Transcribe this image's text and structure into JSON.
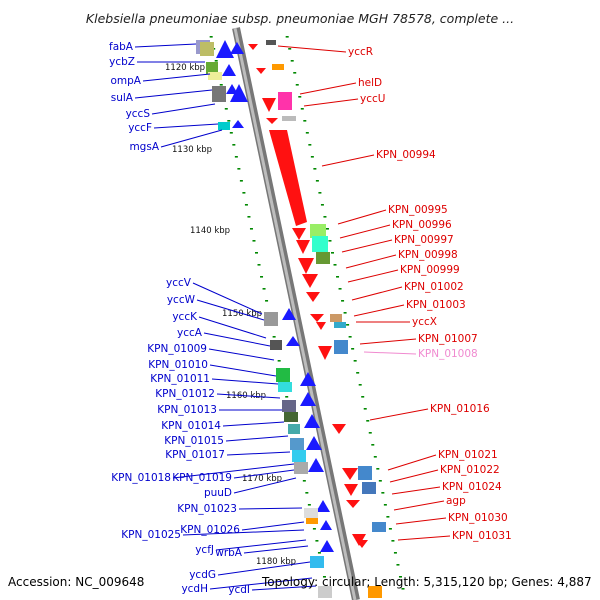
{
  "title": "Klebsiella pneumoniae subsp. pneumoniae MGH 78578, complete ...",
  "footer": {
    "accession": "Accession: NC_009648",
    "summary": "Topology: circular; Length: 5,315,120 bp; Genes: 4,887"
  },
  "colors": {
    "backbone": "#9a9a9a",
    "forward_label": "#0000cc",
    "reverse_label": "#dd0000",
    "pseudo_label": "#f08ad0",
    "ruler": "#008800"
  },
  "kbp_ticks": [
    "1120 kbp",
    "1130 kbp",
    "1140 kbp",
    "1150 kbp",
    "1160 kbp",
    "1170 kbp",
    "1180 kbp"
  ],
  "left_labels": [
    "fabA",
    "ycbZ",
    "ompA",
    "sulA",
    "yccS",
    "yccF",
    "mgsA",
    "yccV",
    "yccW",
    "yccK",
    "yccA",
    "KPN_01009",
    "KPN_01010",
    "KPN_01011",
    "KPN_01012",
    "KPN_01013",
    "KPN_01014",
    "KPN_01015",
    "KPN_01017",
    "KPN_01018",
    "KPN_01019",
    "puuD",
    "KPN_01023",
    "KPN_01026",
    "KPN_01025",
    "ycfJ",
    "wrbA",
    "ycdG",
    "ycdH",
    "ycdI"
  ],
  "right_labels": [
    "yccR",
    "helD",
    "yccU",
    "KPN_00994",
    "KPN_00995",
    "KPN_00996",
    "KPN_00997",
    "KPN_00998",
    "KPN_00999",
    "KPN_01002",
    "KPN_01003",
    "yccX",
    "KPN_01007",
    "KPN_01008",
    "KPN_01016",
    "KPN_01021",
    "KPN_01022",
    "KPN_01024",
    "agp",
    "KPN_01030",
    "KPN_01031"
  ]
}
